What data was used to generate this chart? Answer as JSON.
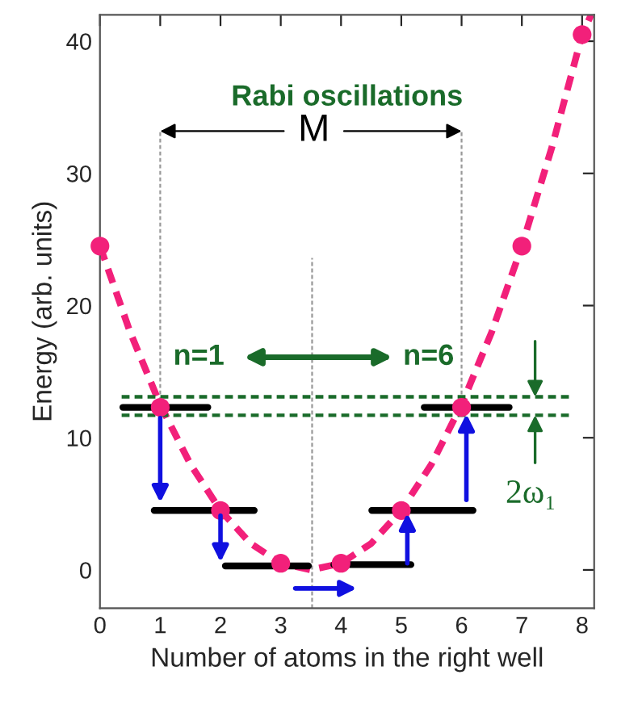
{
  "chart_data": {
    "type": "line",
    "xlabel": "Number of atoms in the right well",
    "ylabel": "Energy (arb. units)",
    "xlim": [
      0,
      8.2
    ],
    "ylim": [
      -2.9,
      42
    ],
    "xticks": [
      0,
      1,
      2,
      3,
      4,
      5,
      6,
      7,
      8
    ],
    "yticks": [
      0,
      10,
      20,
      30,
      40
    ],
    "grid": false,
    "legend": false,
    "series": [
      {
        "color": "#f2207a",
        "line_style": "dashed",
        "marker": "none",
        "x": [
          0,
          0.5,
          1,
          1.5,
          2,
          2.5,
          3,
          3.5,
          4,
          4.5,
          5,
          5.5,
          6,
          6.5,
          7,
          7.5,
          8,
          8.15
        ],
        "values": [
          24.5,
          18,
          12.5,
          8,
          4.5,
          2,
          0.5,
          0,
          0.5,
          2,
          4.5,
          8,
          12.5,
          18,
          24.5,
          32,
          40.5,
          42
        ]
      },
      {
        "type": "scatter",
        "color": "#f2207a",
        "marker": "circle",
        "x": [
          0,
          1,
          2,
          3,
          4,
          5,
          6,
          7,
          8
        ],
        "values": [
          24.5,
          12.3,
          4.5,
          0.5,
          0.5,
          4.5,
          12.3,
          24.5,
          40.5
        ]
      },
      {
        "color": "#000000",
        "line_style": "solid",
        "marker": "none",
        "x": [
          0.38,
          1.79,
          null,
          0.9,
          2.56,
          null,
          2.08,
          3.46,
          null,
          3.88,
          5.16,
          null,
          4.51,
          6.19,
          null,
          5.38,
          6.79
        ],
        "values": [
          12.3,
          12.3,
          null,
          4.5,
          4.5,
          null,
          0.3,
          0.3,
          null,
          0.4,
          0.4,
          null,
          4.5,
          4.5,
          null,
          12.3,
          12.3
        ]
      },
      {
        "color": "#1a6b2a",
        "line_style": "dashed",
        "marker": "none",
        "x": [
          0.36,
          7.8
        ],
        "values": [
          11.7,
          11.7
        ]
      },
      {
        "color": "#999999",
        "line_style": "dashed",
        "marker": "none",
        "x": [
          1,
          1,
          null,
          6,
          6,
          null,
          3.52,
          3.52
        ],
        "values": [
          12.3,
          33.2,
          null,
          12.3,
          33.2,
          null,
          -2.9,
          23.6
        ]
      },
      {
        "color": "#1a6b2a",
        "line_style": "dashed",
        "marker": "none",
        "x": [
          0.36,
          7.8
        ],
        "values": [
          13.1,
          13.1
        ]
      }
    ],
    "annotations": [
      "Rabi oscillations",
      {
        "text": "M",
        "x": 3.55,
        "y": 33.2
      },
      "n=1",
      "n=6",
      {
        "text": "2ω₁",
        "x": 7.22,
        "y": 11.7
      }
    ]
  }
}
